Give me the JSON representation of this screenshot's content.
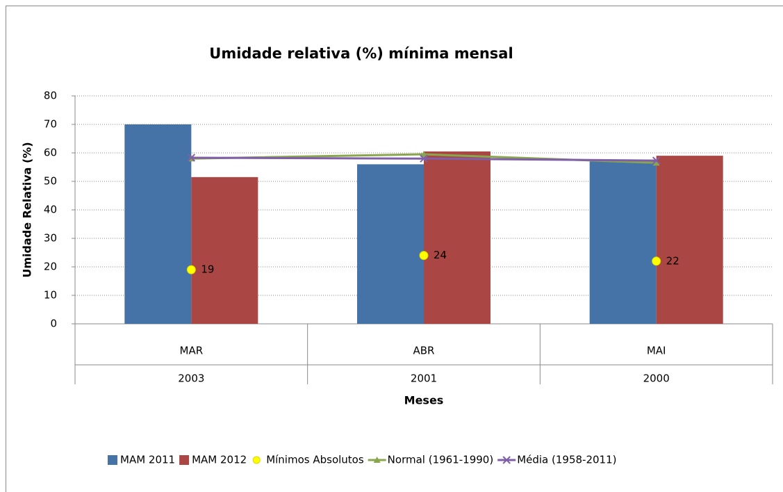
{
  "chart_data": {
    "type": "bar",
    "title": "Umidade relativa (%) mínima mensal",
    "x_label": "Meses",
    "y_label": "Umidade Relativa (%)",
    "categories": [
      "MAR",
      "ABR",
      "MAI"
    ],
    "group_labels": [
      "2003",
      "2001",
      "2000"
    ],
    "series": [
      {
        "name": "MAM 2011",
        "type": "bar",
        "color": "#4572a7",
        "values": [
          70,
          56,
          57
        ]
      },
      {
        "name": "MAM 2012",
        "type": "bar",
        "color": "#aa4643",
        "values": [
          51.5,
          60.5,
          59
        ]
      },
      {
        "name": "Mínimos Absolutos",
        "type": "scatter",
        "color": "#ffff00",
        "values": [
          19,
          24,
          22
        ]
      },
      {
        "name": "Normal (1961-1990)",
        "type": "line",
        "marker": "triangle",
        "color": "#89a54e",
        "values": [
          58,
          59.5,
          56.5
        ]
      },
      {
        "name": "Média (1958-2011)",
        "type": "line",
        "marker": "x",
        "color": "#7f5fa7",
        "values": [
          58.3,
          58,
          57.3
        ]
      }
    ],
    "ylim": [
      0,
      80
    ],
    "yticks": [
      0,
      10,
      20,
      30,
      40,
      50,
      60,
      70,
      80
    ],
    "grid": true,
    "legend": "bottom"
  }
}
